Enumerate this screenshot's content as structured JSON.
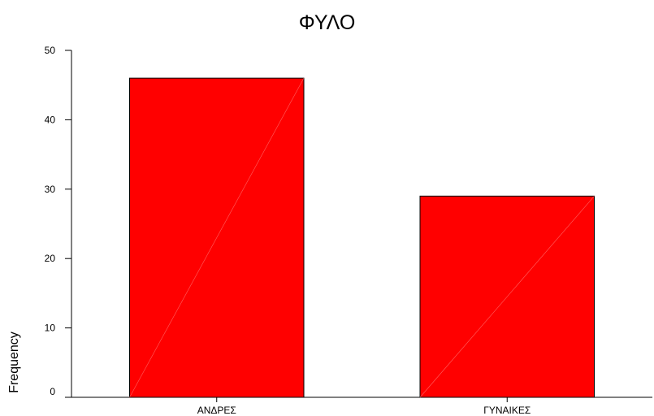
{
  "chart_data": {
    "type": "bar",
    "title": "ΦΥΛΟ",
    "xlabel": "",
    "ylabel": "Frequency",
    "categories": [
      "ΑΝΔΡΕΣ",
      "ΓΥΝΑΙΚΕΣ"
    ],
    "values": [
      46,
      29
    ],
    "ylim": [
      0,
      50
    ],
    "yticks": [
      0,
      10,
      20,
      30,
      40,
      50
    ],
    "grid": false,
    "bar_color": "#ff0000",
    "bar_edge_color": "#000000"
  }
}
